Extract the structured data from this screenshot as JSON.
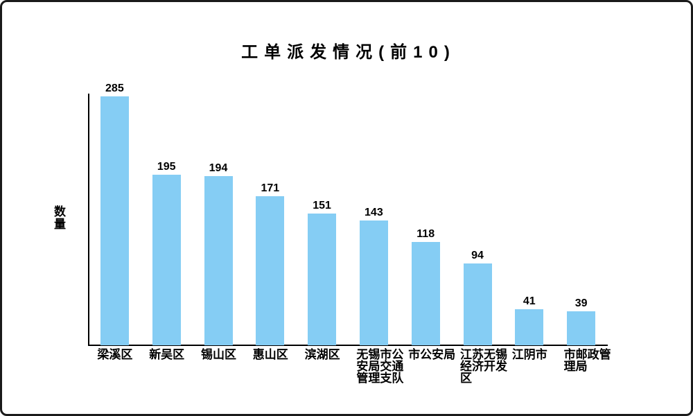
{
  "title": "工单派发情况(前10)",
  "chart_data": {
    "type": "bar",
    "title": "工单派发情况(前10)",
    "categories": [
      "梁溪区",
      "新吴区",
      "锡山区",
      "惠山区",
      "滨湖区",
      "无锡市公安局交通管理支队",
      "市公安局",
      "江苏无锡经济开发区",
      "江阴市",
      "市邮政管理局"
    ],
    "values": [
      285,
      195,
      194,
      171,
      151,
      143,
      118,
      94,
      41,
      39
    ],
    "xlabel": "",
    "ylabel": "数量",
    "ylim": [
      0,
      285
    ],
    "grid": false,
    "legend": false,
    "value_labels_shown": true,
    "bar_color": "#85CDF4",
    "axis_color": "#000000",
    "text_color": "#000000"
  }
}
